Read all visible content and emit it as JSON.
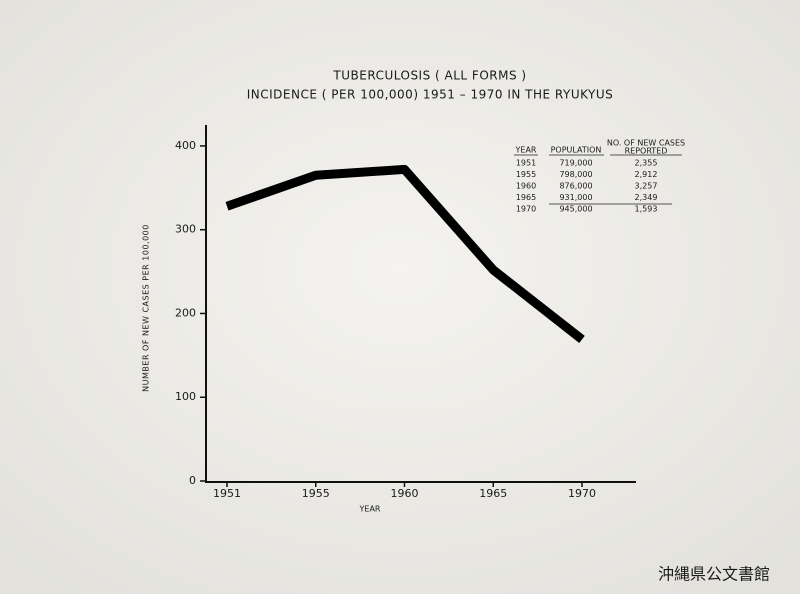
{
  "chart_data": {
    "type": "line",
    "title": "TUBERCULOSIS ( ALL FORMS )",
    "subtitle": "INCIDENCE ( PER 100,000) 1951 – 1970 IN THE RYUKYUS",
    "x_label": "YEAR",
    "y_label": "NUMBER OF NEW CASES PER 100,000",
    "categories": [
      "1951",
      "1955",
      "1960",
      "1965",
      "1970"
    ],
    "values": [
      328,
      365,
      372,
      252,
      169
    ],
    "color": "#000000",
    "ylim": [
      0,
      425
    ],
    "yticks": [
      0,
      100,
      200,
      300,
      400
    ],
    "table": {
      "header": [
        "YEAR",
        "POPULATION",
        [
          "NO. OF NEW CASES",
          "REPORTED"
        ]
      ],
      "rows": [
        [
          "1951",
          "719,000",
          "2,355"
        ],
        [
          "1955",
          "798,000",
          "2,912"
        ],
        [
          "1960",
          "876,000",
          "3,257"
        ],
        [
          "1965",
          "931,000",
          "2,349"
        ],
        [
          "1970",
          "945,000",
          "1,593"
        ]
      ]
    }
  },
  "watermark": "沖縄県公文書館"
}
